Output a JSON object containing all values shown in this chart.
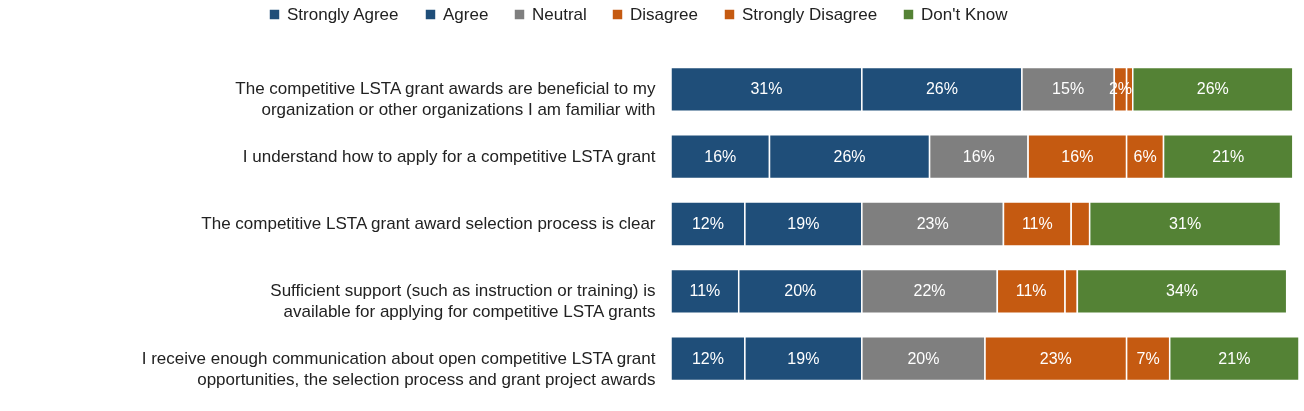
{
  "chart_data": {
    "type": "bar",
    "orientation": "horizontal",
    "stacked": true,
    "legend": "top",
    "grid": false,
    "categories": [
      "The competitive LSTA grant awards are beneficial to my organization or other organizations I am familiar with",
      "I understand how to apply for a competitive LSTA grant",
      "The competitive LSTA grant award selection process is clear",
      "Sufficient support (such as instruction or training) is available for applying for competitive LSTA grants",
      "I receive enough communication about open competitive LSTA grant opportunities, the selection process and grant project awards"
    ],
    "series": [
      {
        "name": "Strongly Agree",
        "color": "#1f4e79",
        "values": [
          31,
          16,
          12,
          11,
          12
        ],
        "value_labels": [
          "31%",
          "16%",
          "12%",
          "11%",
          "12%"
        ]
      },
      {
        "name": "Agree",
        "color": "#1f4e79",
        "values": [
          26,
          26,
          19,
          20,
          19
        ],
        "value_labels": [
          "26%",
          "26%",
          "19%",
          "20%",
          "19%"
        ]
      },
      {
        "name": "Neutral",
        "color": "#7f7f7f",
        "values": [
          15,
          16,
          23,
          22,
          20
        ],
        "value_labels": [
          "15%",
          "16%",
          "23%",
          "22%",
          "20%"
        ]
      },
      {
        "name": "Disagree",
        "color": "#c55a11",
        "values": [
          2,
          16,
          11,
          11,
          23
        ],
        "value_labels": [
          "2%",
          "16%",
          "11%",
          "11%",
          "23%"
        ]
      },
      {
        "name": "Strongly Disagree",
        "color": "#c55a11",
        "values": [
          1,
          6,
          3,
          2,
          7
        ],
        "value_labels": [
          null,
          "6%",
          null,
          null,
          "7%"
        ]
      },
      {
        "name": "Don't Know",
        "color": "#548235",
        "values": [
          26,
          21,
          31,
          34,
          21
        ],
        "value_labels": [
          "26%",
          "21%",
          "31%",
          "34%",
          "21%"
        ]
      }
    ]
  }
}
